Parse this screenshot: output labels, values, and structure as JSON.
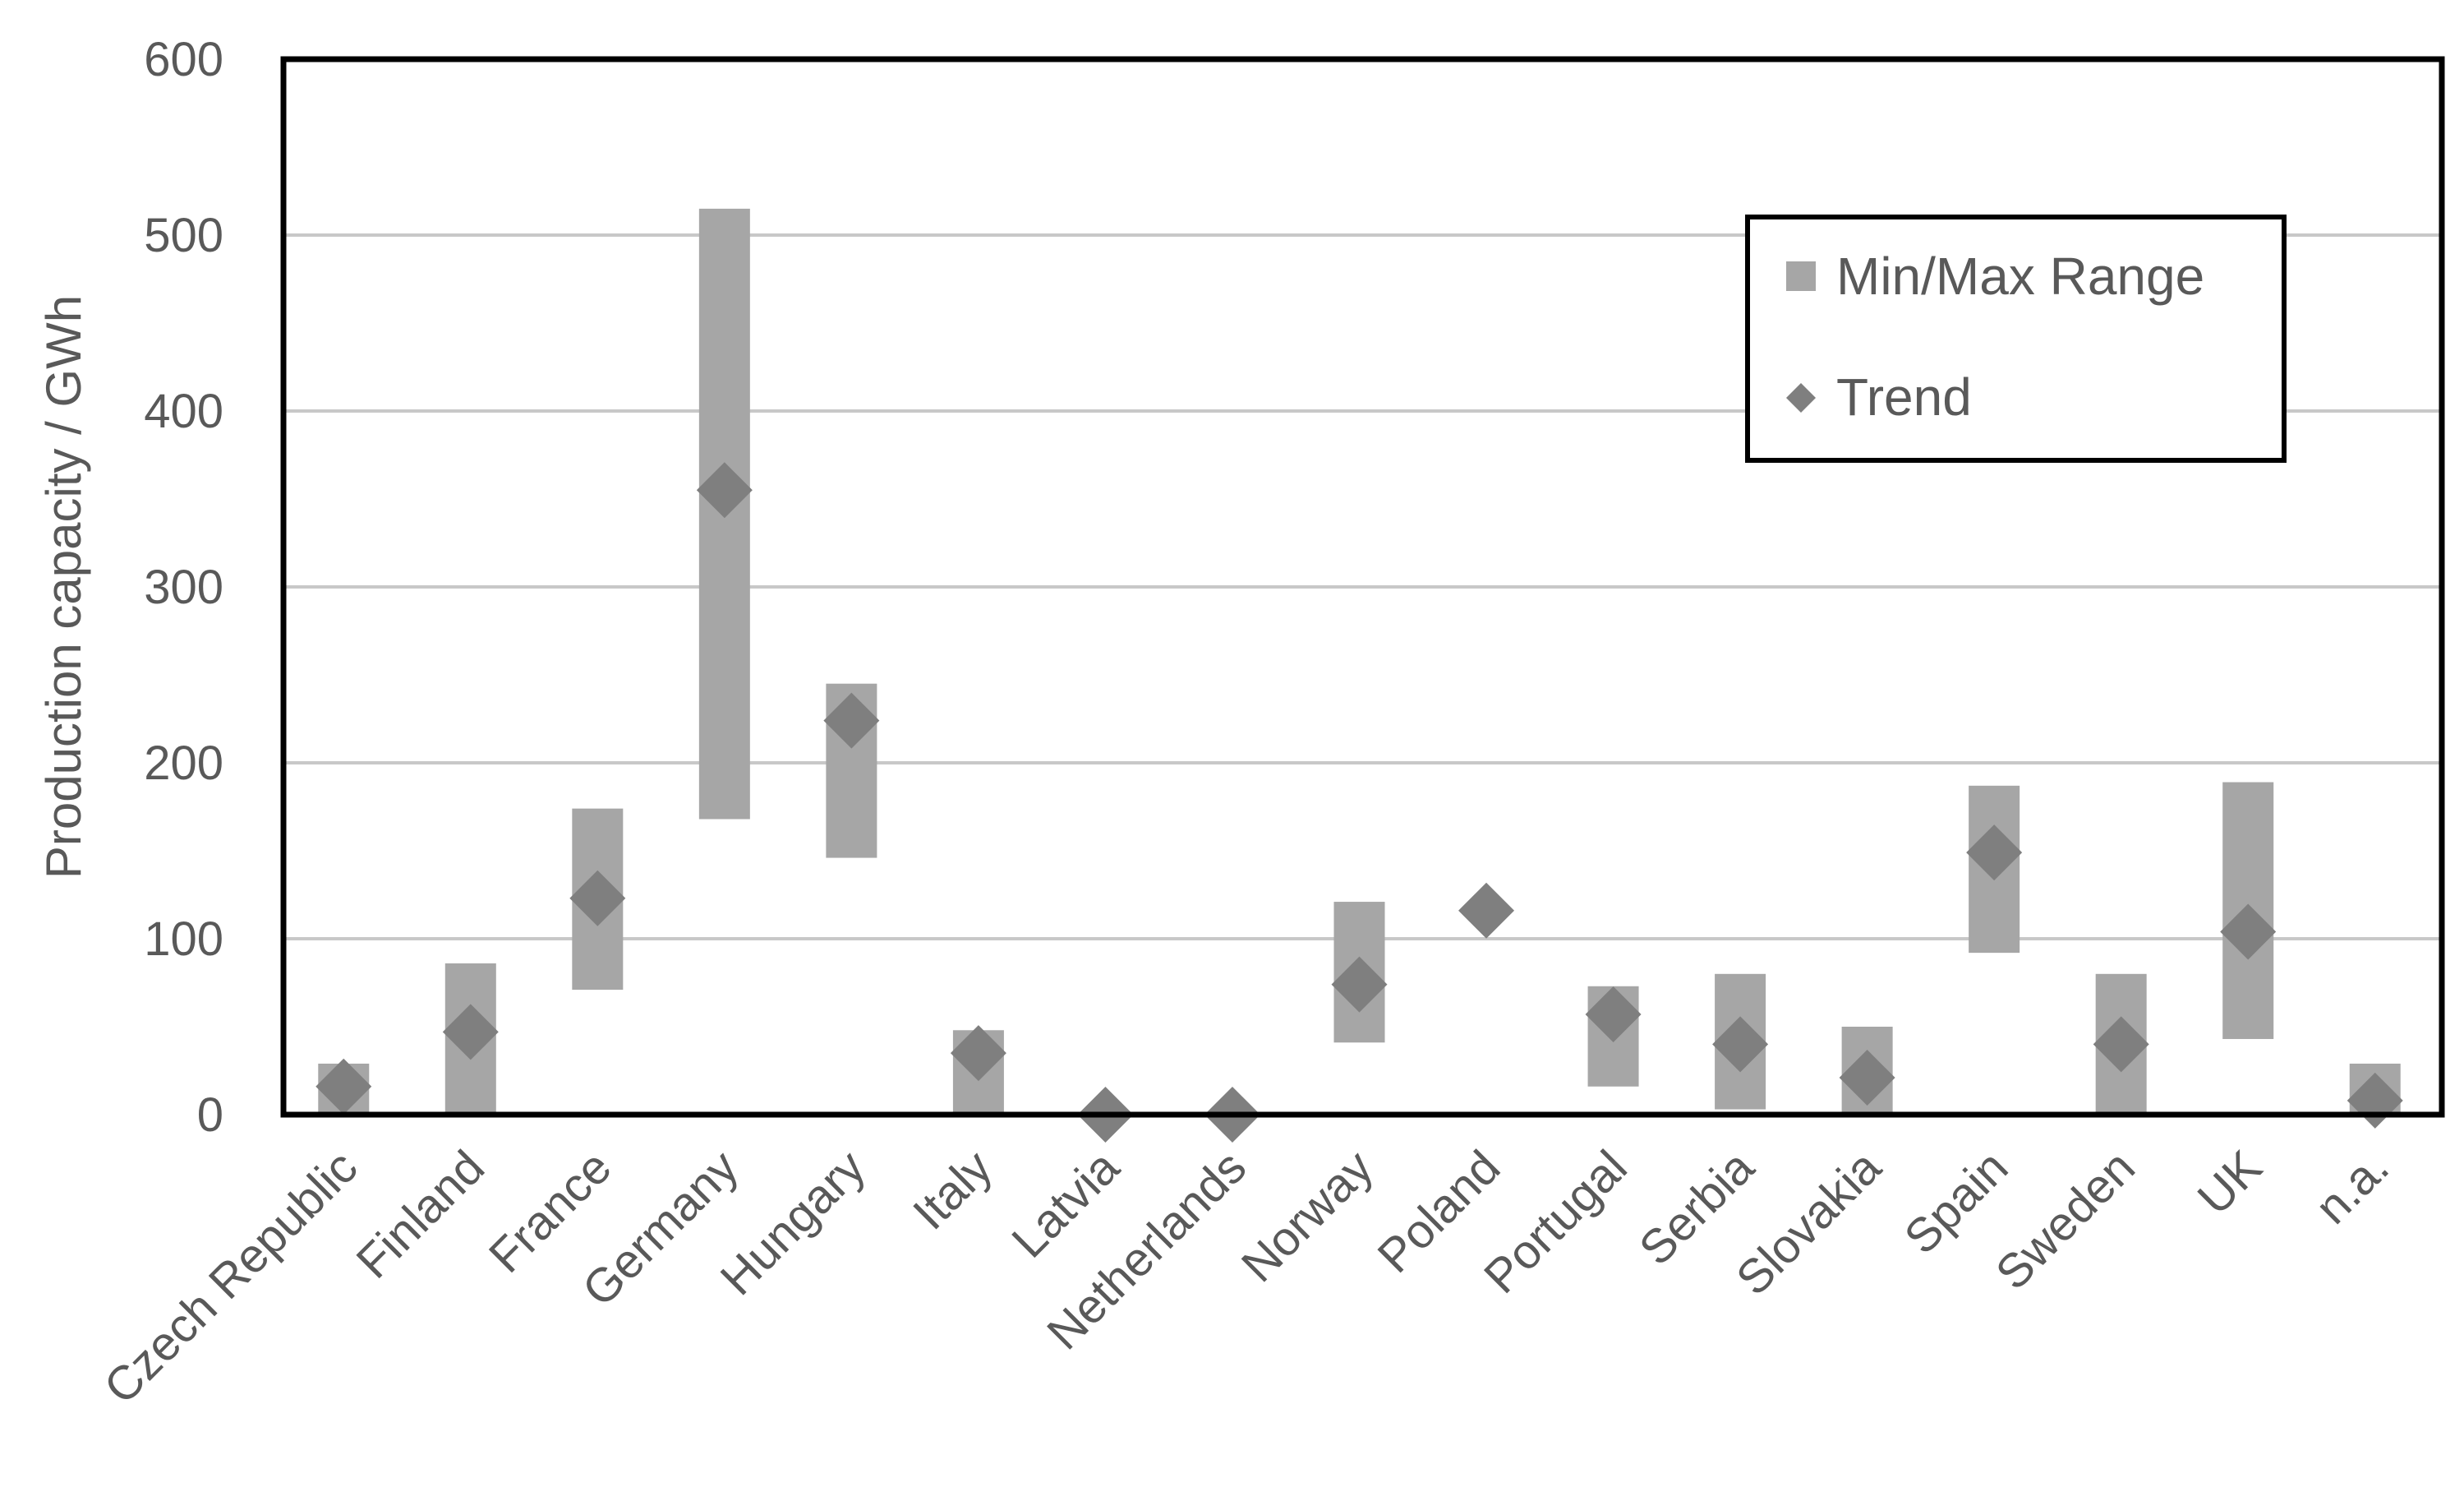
{
  "chart_data": {
    "type": "range-scatter",
    "ylabel": "Production capacity / GWh",
    "xlabel": "",
    "ylim": [
      0,
      600
    ],
    "yticks": [
      0,
      100,
      200,
      300,
      400,
      500,
      600
    ],
    "grid": true,
    "legend_position": "top-right",
    "categories": [
      "Czech Republic",
      "Finland",
      "France",
      "Germany",
      "Hungary",
      "Italy",
      "Latvia",
      "Netherlands",
      "Norway",
      "Poland",
      "Portugal",
      "Serbia",
      "Slovakia",
      "Spain",
      "Sweden",
      "UK",
      "n.a."
    ],
    "series": [
      {
        "name": "Min/Max Range",
        "kind": "range",
        "min": [
          0,
          0,
          71,
          168,
          146,
          0,
          null,
          null,
          41,
          null,
          16,
          3,
          0,
          92,
          0,
          43,
          0
        ],
        "max": [
          29,
          86,
          174,
          515,
          245,
          48,
          null,
          null,
          121,
          null,
          73,
          80,
          50,
          187,
          80,
          189,
          29
        ]
      },
      {
        "name": "Trend",
        "kind": "point",
        "values": [
          16,
          47,
          123,
          355,
          224,
          35,
          0,
          0,
          74,
          116,
          57,
          40,
          21,
          149,
          40,
          104,
          8
        ]
      }
    ],
    "colors": {
      "range": "#a6a6a6",
      "trend": "#7f7f7f",
      "axis": "#000000",
      "grid": "#c8c8c8"
    }
  }
}
